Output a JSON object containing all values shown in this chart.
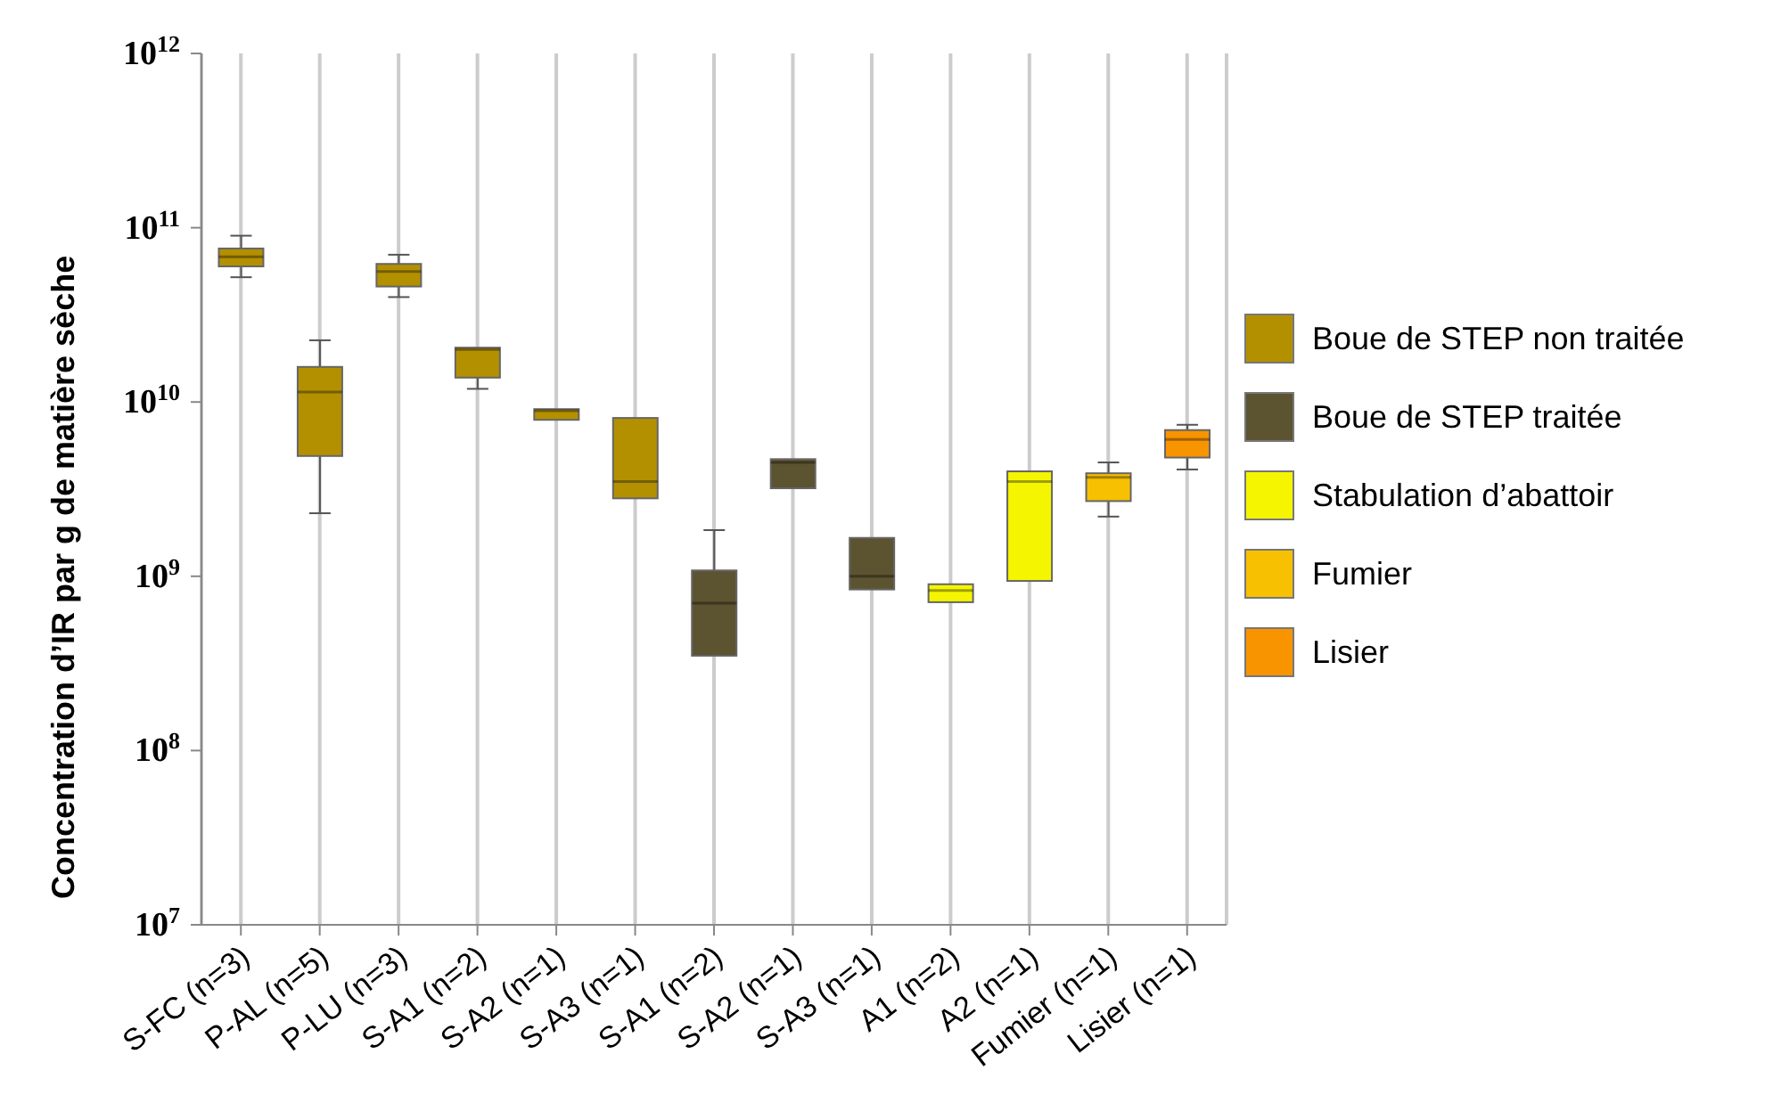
{
  "chart_data": {
    "type": "box",
    "ylabel": "Concentration d’IR par g de matière sèche",
    "log": true,
    "grid": "x",
    "legend": "right",
    "categories": [
      "S-FC (n=3)",
      "P-AL (n=5)",
      "P-LU (n=3)",
      "S-A1 (n=2)",
      "S-A2 (n=1)",
      "S-A3 (n=1)",
      "S-A1 (n=2)",
      "S-A2 (n=1)",
      "S-A3 (n=1)",
      "A1 (n=2)",
      "A2 (n=1)",
      "Fumier (n=1)",
      "Lisier (n=1)"
    ],
    "ylim": [
      10000000,
      1000000000000
    ],
    "yticks": [
      {
        "value": 10000000,
        "label": "10$^{7}$"
      },
      {
        "value": 100000000,
        "label": "10$^{8}$"
      },
      {
        "value": 1000000000,
        "label": "10$^{9}$"
      },
      {
        "value": 10000000000,
        "label": "10$^{10}$"
      },
      {
        "value": 100000000000,
        "label": "10$^{11}$"
      },
      {
        "value": 1000000000000,
        "label": "10$^{12}$"
      }
    ],
    "series": [
      {
        "name": "Boue de STEP non traitée",
        "color": "#b39000",
        "boxes": [
          {
            "low": 52000000000,
            "q1": 60000000000,
            "median": 68000000000,
            "q3": 76000000000,
            "high": 90000000000
          },
          {
            "low": 2300000000,
            "q1": 4900000000,
            "median": 11400000000,
            "q3": 15900000000,
            "high": 22600000000
          },
          {
            "low": 40000000000,
            "q1": 46000000000,
            "median": 56000000000,
            "q3": 62000000000,
            "high": 70000000000
          },
          {
            "low": 11900000000,
            "q1": 13800000000,
            "median": 20000000000,
            "q3": 20500000000,
            "high": 20500000000
          },
          {
            "low": 7900000000,
            "q1": 7900000000,
            "median": 8900000000,
            "q3": 9100000000,
            "high": 9100000000
          },
          {
            "low": 2800000000,
            "q1": 2800000000,
            "median": 3500000000,
            "q3": 8100000000,
            "high": 8100000000
          },
          null,
          null,
          null,
          null,
          null,
          null,
          null
        ]
      },
      {
        "name": "Boue de STEP traitée",
        "color": "#5c5330",
        "boxes": [
          null,
          null,
          null,
          null,
          null,
          null,
          {
            "low": 350000000,
            "q1": 350000000,
            "median": 700000000,
            "q3": 1080000000,
            "high": 1840000000
          },
          {
            "low": 3200000000,
            "q1": 3200000000,
            "median": 4500000000,
            "q3": 4700000000,
            "high": 4700000000
          },
          {
            "low": 840000000,
            "q1": 840000000,
            "median": 1000000000,
            "q3": 1660000000,
            "high": 1660000000
          },
          null,
          null,
          null,
          null
        ]
      },
      {
        "name": "Stabulation d’abattoir",
        "color": "#f5f500",
        "boxes": [
          null,
          null,
          null,
          null,
          null,
          null,
          null,
          null,
          null,
          {
            "low": 710000000,
            "q1": 710000000,
            "median": 830000000,
            "q3": 900000000,
            "high": 900000000
          },
          {
            "low": 940000000,
            "q1": 940000000,
            "median": 3500000000,
            "q3": 4000000000,
            "high": 4000000000
          },
          null,
          null
        ]
      },
      {
        "name": "Fumier",
        "color": "#f7c000",
        "boxes": [
          null,
          null,
          null,
          null,
          null,
          null,
          null,
          null,
          null,
          null,
          null,
          {
            "low": 2200000000,
            "q1": 2700000000,
            "median": 3700000000,
            "q3": 3900000000,
            "high": 4500000000
          },
          null
        ]
      },
      {
        "name": "Lisier",
        "color": "#f79400",
        "boxes": [
          null,
          null,
          null,
          null,
          null,
          null,
          null,
          null,
          null,
          null,
          null,
          null,
          {
            "low": 4100000000,
            "q1": 4800000000,
            "median": 6100000000,
            "q3": 6900000000,
            "high": 7400000000
          }
        ]
      }
    ]
  }
}
